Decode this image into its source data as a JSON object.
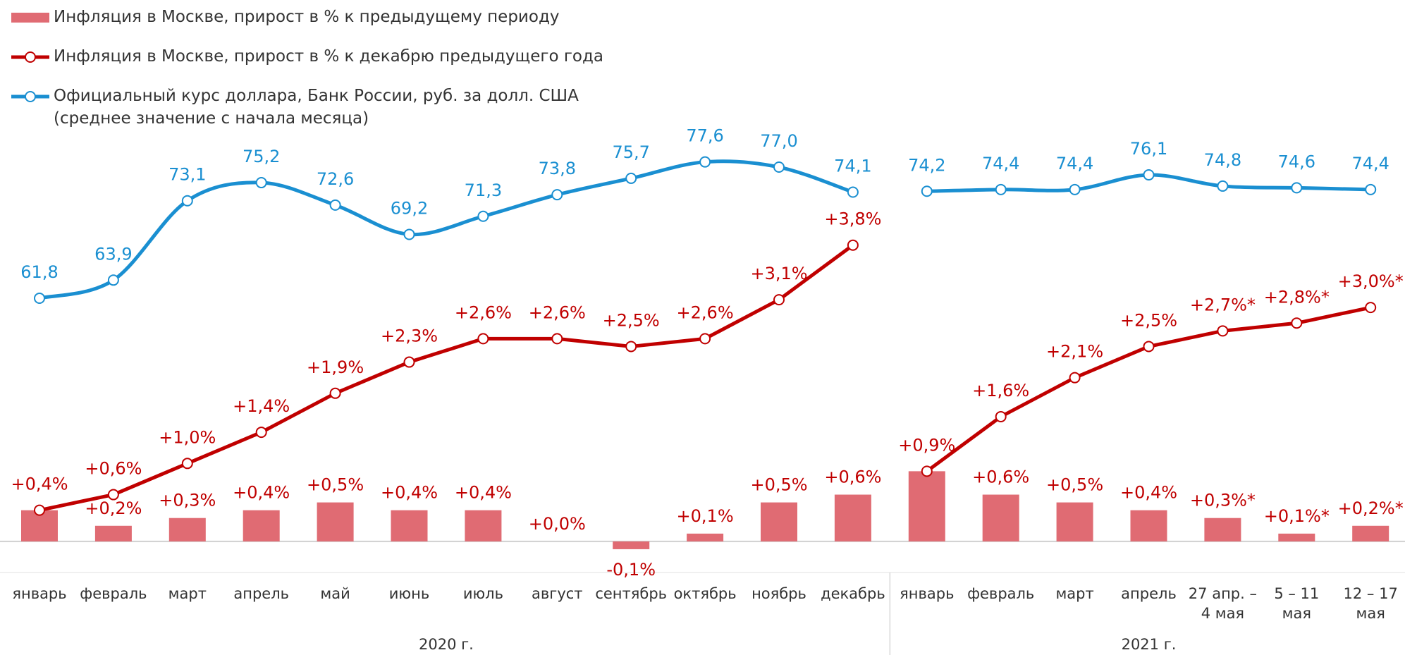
{
  "chart_data": {
    "type": "bar-line",
    "groups": [
      {
        "label": "2020 г.",
        "categories": [
          "январь",
          "февраль",
          "март",
          "апрель",
          "май",
          "июнь",
          "июль",
          "август",
          "сентябрь",
          "октябрь",
          "ноябрь",
          "декабрь"
        ]
      },
      {
        "label": "2021 г.",
        "categories": [
          "январь",
          "февраль",
          "март",
          "апрель",
          "27 апр. – 4 мая",
          "5 – 11 мая",
          "12 – 17 мая"
        ]
      }
    ],
    "ylim": [
      -0.2,
      5.0
    ],
    "y2lim": [
      31.8,
      78.8
    ],
    "series": [
      {
        "name": "Инфляция в Москве, прирост в % к предыдущему периоду",
        "type": "bar",
        "color": "#e06b73",
        "values": [
          0.4,
          0.2,
          0.3,
          0.4,
          0.5,
          0.4,
          0.4,
          0.0,
          -0.1,
          0.1,
          0.5,
          0.6,
          0.9,
          0.6,
          0.5,
          0.4,
          0.3,
          0.1,
          0.2
        ],
        "value_labels": [
          null,
          "+0,2%",
          "+0,3%",
          "+0,4%",
          "+0,5%",
          "+0,4%",
          "+0,4%",
          "+0,0%",
          "-0,1%",
          "+0,1%",
          "+0,5%",
          "+0,6%",
          null,
          "+0,6%",
          "+0,5%",
          "+0,4%",
          "+0,3%*",
          "+0,1%*",
          "+0,2%*"
        ]
      },
      {
        "name": "Инфляция в Москве, прирост в % к декабрю предыдущего года",
        "type": "line",
        "color": "#c00000",
        "values": [
          0.4,
          0.6,
          1.0,
          1.4,
          1.9,
          2.3,
          2.6,
          2.6,
          2.5,
          2.6,
          3.1,
          3.8,
          0.9,
          1.6,
          2.1,
          2.5,
          2.7,
          2.8,
          3.0
        ],
        "value_labels": [
          "+0,4%",
          "+0,6%",
          "+1,0%",
          "+1,4%",
          "+1,9%",
          "+2,3%",
          "+2,6%",
          "+2,6%",
          "+2,5%",
          "+2,6%",
          "+3,1%",
          "+3,8%",
          "+0,9%",
          "+1,6%",
          "+2,1%",
          "+2,5%",
          "+2,7%*",
          "+2,8%*",
          "+3,0%*"
        ]
      },
      {
        "name": "Официальный курс доллара, Банк России, руб. за долл. США (среднее значение с начала месяца)",
        "type": "line",
        "smooth": true,
        "axis": "y2",
        "color": "#1a8fd1",
        "values": [
          61.8,
          63.9,
          73.1,
          75.2,
          72.6,
          69.2,
          71.3,
          73.8,
          75.7,
          77.6,
          77.0,
          74.1,
          74.2,
          74.4,
          74.4,
          76.1,
          74.8,
          74.6,
          74.4
        ],
        "value_labels": [
          "61,8",
          "63,9",
          "73,1",
          "75,2",
          "72,6",
          "69,2",
          "71,3",
          "73,8",
          "75,7",
          "77,6",
          "77,0",
          "74,1",
          "74,2",
          "74,4",
          "74,4",
          "76,1",
          "74,8",
          "74,6",
          "74,4"
        ]
      }
    ]
  }
}
